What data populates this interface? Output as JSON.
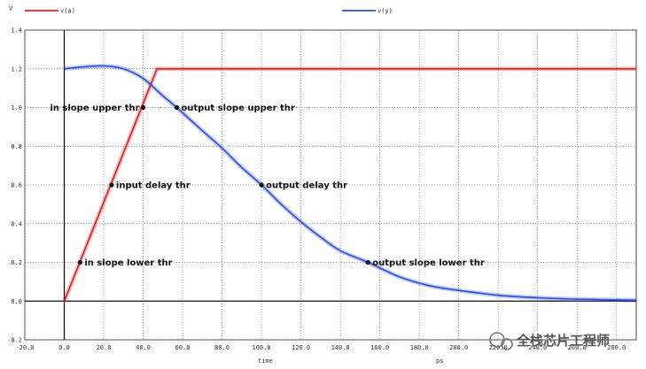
{
  "chart_data": {
    "type": "line",
    "ylabel": "V",
    "xlabel": "time",
    "xunit": "ps",
    "xlim": [
      -20,
      290
    ],
    "ylim": [
      -0.2,
      1.4
    ],
    "x_ticks": [
      "-20.0",
      "0.0",
      "20.0",
      "40.0",
      "60.0",
      "80.0",
      "100.0",
      "120.0",
      "140.0",
      "160.0",
      "180.0",
      "200.0",
      "220.0",
      "240.0",
      "260.0",
      "280.0"
    ],
    "y_ticks": [
      "-0.2",
      "0.0",
      "0.2",
      "0.4",
      "0.6",
      "0.8",
      "1.0",
      "1.2",
      "1.4"
    ],
    "grid": true,
    "legend_position": "top",
    "series": [
      {
        "name": "v(a)",
        "color": "#e02020",
        "x": [
          0,
          47,
          290
        ],
        "y": [
          0,
          1.2,
          1.2
        ]
      },
      {
        "name": "v(y)",
        "color": "#2a4fd6",
        "x": [
          0,
          10,
          20,
          30,
          40,
          50,
          57,
          70,
          80,
          90,
          100,
          110,
          120,
          130,
          140,
          154,
          170,
          185,
          200,
          220,
          240,
          260,
          290
        ],
        "y": [
          1.2,
          1.21,
          1.215,
          1.2,
          1.15,
          1.06,
          1.0,
          0.88,
          0.79,
          0.69,
          0.6,
          0.5,
          0.41,
          0.33,
          0.26,
          0.2,
          0.125,
          0.08,
          0.055,
          0.03,
          0.017,
          0.01,
          0.005
        ]
      }
    ],
    "annotations": [
      {
        "label": "in slope upper thr",
        "x": 40,
        "y": 1.0,
        "side": "left"
      },
      {
        "label": "output slope upper thr",
        "x": 57,
        "y": 1.0,
        "side": "right"
      },
      {
        "label": "input delay thr",
        "x": 24,
        "y": 0.6,
        "side": "right"
      },
      {
        "label": "output delay thr",
        "x": 100,
        "y": 0.6,
        "side": "right"
      },
      {
        "label": "in slope lower thr",
        "x": 8,
        "y": 0.2,
        "side": "right"
      },
      {
        "label": "output slope lower thr",
        "x": 154,
        "y": 0.2,
        "side": "right"
      }
    ]
  },
  "watermark": "全栈芯片工程师"
}
